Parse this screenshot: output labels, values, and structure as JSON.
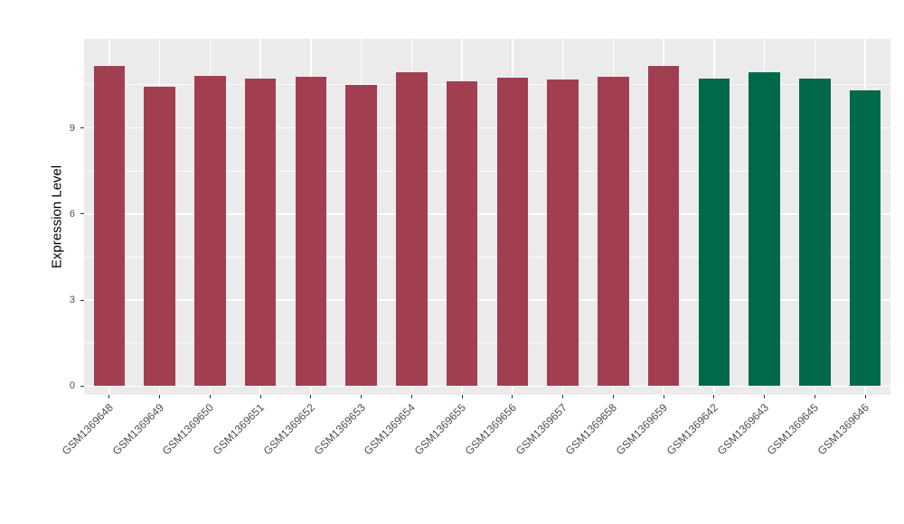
{
  "chart_data": {
    "type": "bar",
    "title": "",
    "xlabel": "",
    "ylabel": "Expression Level",
    "ylim": [
      -0.3,
      12.1
    ],
    "yticks": [
      0,
      3,
      6,
      9
    ],
    "yticks_minor": [
      1.5,
      4.5,
      7.5,
      10.5
    ],
    "grid": true,
    "legend_position": "none",
    "panel_background": "#EBEBEB",
    "grid_color": "#FFFFFF",
    "axis_text_color": "#4D4D4D",
    "bar_width_fraction": 0.62,
    "groups": [
      {
        "color": "#A13F51",
        "categories": [
          "GSM1369648",
          "GSM1369649",
          "GSM1369650",
          "GSM1369651",
          "GSM1369652",
          "GSM1369653",
          "GSM1369654",
          "GSM1369655",
          "GSM1369656",
          "GSM1369657",
          "GSM1369658",
          "GSM1369659"
        ],
        "values": [
          11.16,
          10.44,
          10.82,
          10.72,
          10.78,
          10.5,
          10.94,
          10.63,
          10.75,
          10.69,
          10.78,
          11.16
        ]
      },
      {
        "color": "#00694B",
        "categories": [
          "GSM1369642",
          "GSM1369643",
          "GSM1369645",
          "GSM1369646"
        ],
        "values": [
          10.72,
          10.94,
          10.72,
          10.31
        ]
      }
    ]
  }
}
